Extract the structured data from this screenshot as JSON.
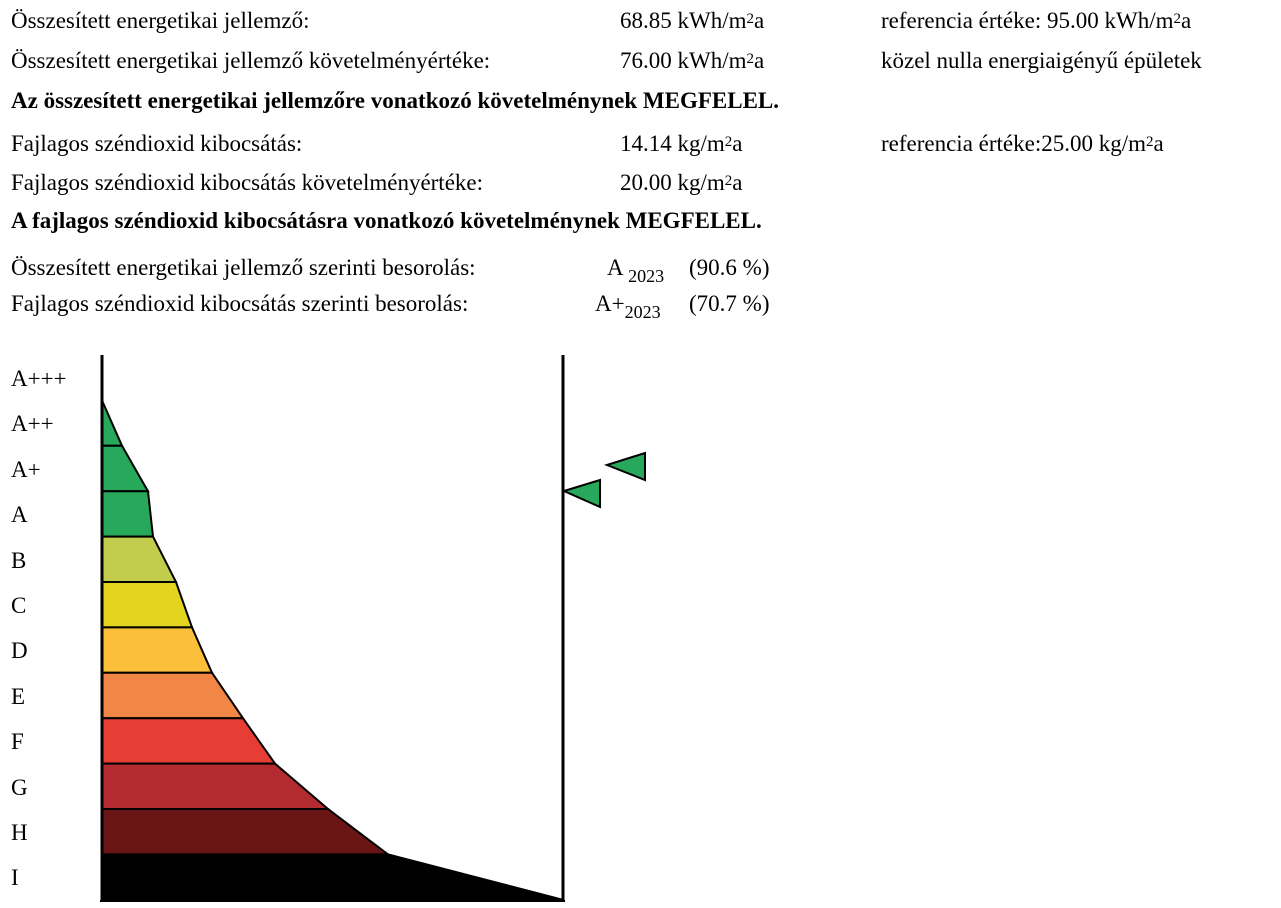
{
  "energy": {
    "label": "Összesített energetikai jellemző:",
    "value": "68.85",
    "unit_pre": "kWh/m",
    "unit_sup": "2",
    "unit_post": "a",
    "ref_label": "referencia értéke: 95.00",
    "ref_unit_pre": "kWh/m",
    "ref_unit_sup": "2",
    "ref_unit_post": "a"
  },
  "energy_req": {
    "label": "Összesített energetikai jellemző követelményértéke:",
    "value": "76.00",
    "unit_pre": "kWh/m",
    "unit_sup": "2",
    "unit_post": "a",
    "note": "közel nulla energiaigényű épületek"
  },
  "energy_verdict": "Az összesített energetikai jellemzőre vonatkozó követelménynek MEGFELEL.",
  "co2": {
    "label": "Fajlagos széndioxid kibocsátás:",
    "value": "14.14",
    "unit_pre": "kg/m",
    "unit_sup": "2",
    "unit_post": "a",
    "ref_label": "referencia értéke:25.00",
    "ref_unit_pre": "kg/m",
    "ref_unit_sup": "2",
    "ref_unit_post": "a"
  },
  "co2_req": {
    "label": "Fajlagos széndioxid kibocsátás követelményértéke:",
    "value": "20.00",
    "unit_pre": "kg/m",
    "unit_sup": "2",
    "unit_post": "a"
  },
  "co2_verdict": "A fajlagos széndioxid kibocsátásra vonatkozó követelménynek MEGFELEL.",
  "rating_energy": {
    "label": "Összesített energetikai jellemző szerinti besorolás:",
    "class": "A",
    "sub": "2023",
    "percent": "(90.6 %)",
    "percent_value": 90.6
  },
  "rating_co2": {
    "label": "Fajlagos széndioxid kibocsátás szerinti besorolás:",
    "class": "A+",
    "sub": "2023",
    "percent": "(70.7 %)",
    "percent_value": 70.7
  },
  "scale": {
    "classes": [
      "A+++",
      "A++",
      "A+",
      "A",
      "B",
      "C",
      "D",
      "E",
      "F",
      "G",
      "H",
      "I"
    ],
    "colors": [
      "#ffffff",
      "#27a85a",
      "#27a85a",
      "#27a85a",
      "#c2cd4e",
      "#e3d41f",
      "#fcbf3a",
      "#f28646",
      "#e63e34",
      "#b32a2f",
      "#6b1616",
      "#000000"
    ],
    "marker_color": "#27a85a"
  }
}
